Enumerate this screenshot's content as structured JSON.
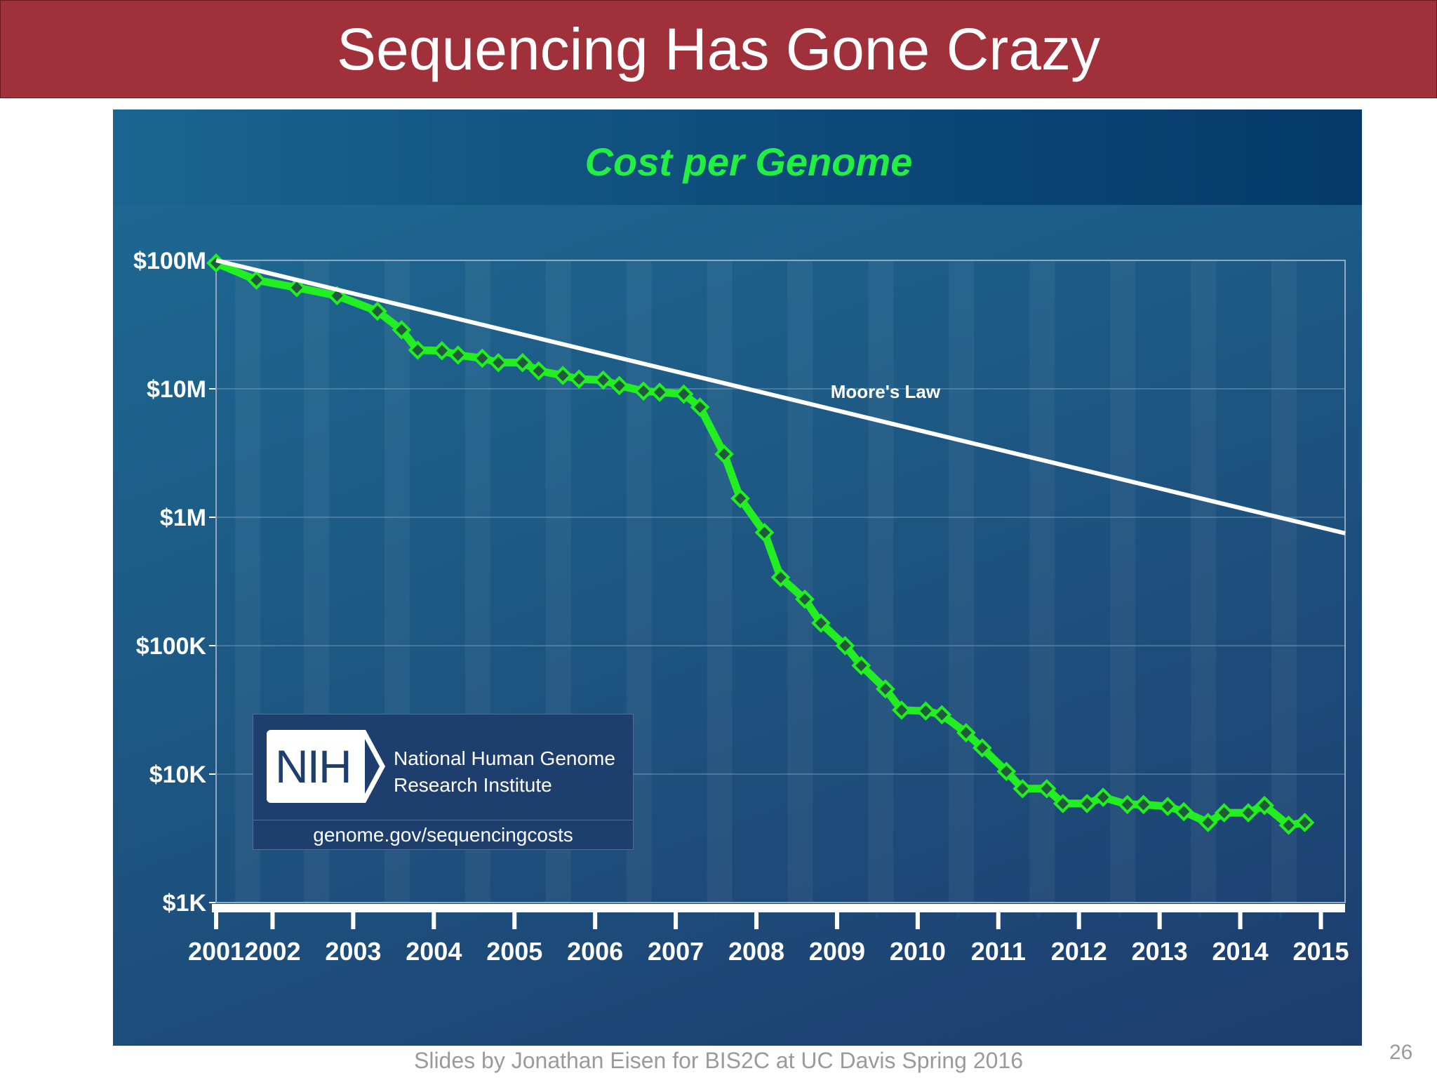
{
  "slide": {
    "title": "Sequencing Has Gone Crazy",
    "footer": "Slides by Jonathan Eisen for BIS2C at UC Davis Spring 2016",
    "page_number": "26"
  },
  "nih": {
    "logo_text": "NIH",
    "name_line1": "National Human Genome",
    "name_line2": "Research Institute",
    "url": "genome.gov/sequencingcosts"
  },
  "chart_data": {
    "type": "line",
    "title": "Cost per Genome",
    "xlabel": "",
    "ylabel": "",
    "y_scale": "log",
    "ylim": [
      1000,
      100000000
    ],
    "y_ticks": [
      {
        "value": 100000000,
        "label": "$100M"
      },
      {
        "value": 10000000,
        "label": "$10M"
      },
      {
        "value": 1000000,
        "label": "$1M"
      },
      {
        "value": 100000,
        "label": "$100K"
      },
      {
        "value": 10000,
        "label": "$10K"
      },
      {
        "value": 1000,
        "label": "$1K"
      }
    ],
    "x_ticks": [
      {
        "value": 2001.7,
        "label": "2001"
      },
      {
        "value": 2002.4,
        "label": "2002"
      },
      {
        "value": 2003.4,
        "label": "2003"
      },
      {
        "value": 2004.4,
        "label": "2004"
      },
      {
        "value": 2005.4,
        "label": "2005"
      },
      {
        "value": 2006.4,
        "label": "2006"
      },
      {
        "value": 2007.4,
        "label": "2007"
      },
      {
        "value": 2008.4,
        "label": "2008"
      },
      {
        "value": 2009.4,
        "label": "2009"
      },
      {
        "value": 2010.4,
        "label": "2010"
      },
      {
        "value": 2011.4,
        "label": "2011"
      },
      {
        "value": 2012.4,
        "label": "2012"
      },
      {
        "value": 2013.4,
        "label": "2013"
      },
      {
        "value": 2014.4,
        "label": "2014"
      },
      {
        "value": 2015.4,
        "label": "2015"
      }
    ],
    "grid": true,
    "series": [
      {
        "name": "Cost per Genome",
        "color": "#22ee22",
        "x": [
          2001.7,
          2002.2,
          2002.7,
          2003.2,
          2003.7,
          2004.0,
          2004.2,
          2004.5,
          2004.7,
          2005.0,
          2005.2,
          2005.5,
          2005.7,
          2006.0,
          2006.2,
          2006.5,
          2006.7,
          2007.0,
          2007.2,
          2007.5,
          2007.7,
          2008.0,
          2008.2,
          2008.5,
          2008.7,
          2009.0,
          2009.2,
          2009.5,
          2009.7,
          2010.0,
          2010.2,
          2010.5,
          2010.7,
          2011.0,
          2011.2,
          2011.5,
          2011.7,
          2012.0,
          2012.2,
          2012.5,
          2012.7,
          2013.0,
          2013.2,
          2013.5,
          2013.7,
          2014.0,
          2014.2,
          2014.5,
          2014.7,
          2015.0,
          2015.2
        ],
        "y": [
          95300000,
          70200000,
          61400000,
          53100000,
          40200000,
          28800000,
          20000000,
          19800000,
          18300000,
          17300000,
          16000000,
          16000000,
          13800000,
          12700000,
          11900000,
          11700000,
          10600000,
          9600000,
          9400000,
          9100000,
          7200000,
          3100000,
          1400000,
          760000,
          340000,
          230000,
          150000,
          100000,
          70000,
          46000,
          31500,
          31000,
          29000,
          21000,
          16000,
          10500,
          7700,
          7700,
          5900,
          5900,
          6600,
          5800,
          5800,
          5600,
          5100,
          4200,
          5000,
          5000,
          5700,
          4000,
          4200
        ]
      },
      {
        "name": "Moore's Law",
        "color": "#ffffff",
        "x": [
          2001.7,
          2015.7
        ],
        "y": [
          100000000,
          750000
        ]
      }
    ]
  }
}
